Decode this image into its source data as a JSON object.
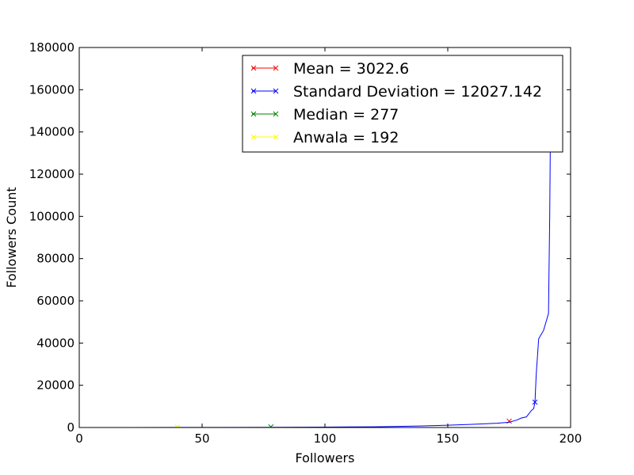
{
  "chart_data": {
    "type": "line",
    "title": "",
    "xlabel": "Followers",
    "ylabel": "Followers Count",
    "xlim": [
      0,
      200
    ],
    "ylim": [
      0,
      180000
    ],
    "xticks": [
      "0",
      "50",
      "100",
      "150",
      "200"
    ],
    "yticks": [
      "0",
      "20000",
      "40000",
      "60000",
      "80000",
      "100000",
      "120000",
      "140000",
      "160000",
      "180000"
    ],
    "grid": false,
    "legend_position": "top-right",
    "series": [
      {
        "name": "Mean = 3022.6",
        "color": "#ff0000",
        "marker": "x",
        "points": [
          [
            175,
            3022.6
          ]
        ]
      },
      {
        "name": "Standard Deviation = 12027.142",
        "color": "#0000ff",
        "marker": "x",
        "points": [
          [
            0,
            0
          ],
          [
            20,
            10
          ],
          [
            40,
            30
          ],
          [
            60,
            60
          ],
          [
            80,
            110
          ],
          [
            100,
            200
          ],
          [
            110,
            260
          ],
          [
            120,
            350
          ],
          [
            130,
            500
          ],
          [
            140,
            750
          ],
          [
            150,
            1100
          ],
          [
            160,
            1500
          ],
          [
            170,
            2000
          ],
          [
            175,
            2500
          ],
          [
            178,
            3500
          ],
          [
            180,
            4500
          ],
          [
            182,
            5000
          ],
          [
            184,
            8000
          ],
          [
            185,
            9000
          ],
          [
            185.5,
            12027.142
          ],
          [
            186,
            25000
          ],
          [
            187,
            42000
          ],
          [
            188,
            44000
          ],
          [
            189,
            46000
          ],
          [
            190,
            50000
          ],
          [
            191,
            54000
          ],
          [
            191.5,
            100000
          ],
          [
            192,
            170000
          ]
        ]
      },
      {
        "name": "Median = 277",
        "color": "#008000",
        "marker": "x",
        "points": [
          [
            78,
            277
          ]
        ]
      },
      {
        "name": "Anwala = 192",
        "color": "#ffff00",
        "marker": "x",
        "points": [
          [
            40,
            192
          ]
        ]
      }
    ]
  }
}
